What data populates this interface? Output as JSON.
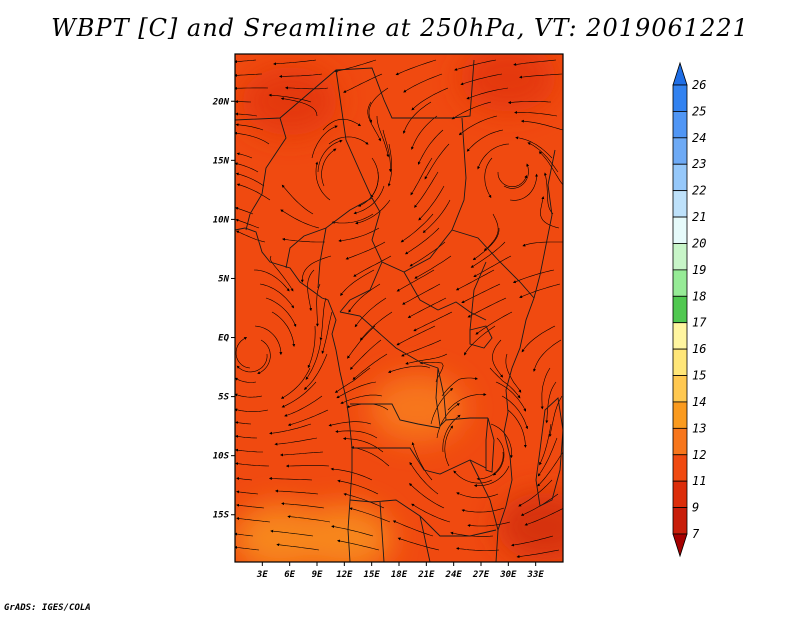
{
  "title": "WBPT [C] and Sreamline at 250hPa, VT: 2019061221",
  "credit": "GrADS: IGES/COLA",
  "map": {
    "lon_range": [
      0,
      36
    ],
    "lat_range": [
      -19,
      24
    ],
    "lon_ticks": [
      {
        "value": 3,
        "label": "3E"
      },
      {
        "value": 6,
        "label": "6E"
      },
      {
        "value": 9,
        "label": "9E"
      },
      {
        "value": 12,
        "label": "12E"
      },
      {
        "value": 15,
        "label": "15E"
      },
      {
        "value": 18,
        "label": "18E"
      },
      {
        "value": 21,
        "label": "21E"
      },
      {
        "value": 24,
        "label": "24E"
      },
      {
        "value": 27,
        "label": "27E"
      },
      {
        "value": 30,
        "label": "30E"
      },
      {
        "value": 33,
        "label": "33E"
      }
    ],
    "lat_ticks": [
      {
        "value": 20,
        "label": "20N"
      },
      {
        "value": 15,
        "label": "15N"
      },
      {
        "value": 10,
        "label": "10N"
      },
      {
        "value": 5,
        "label": "5N"
      },
      {
        "value": 0,
        "label": "EQ"
      },
      {
        "value": -5,
        "label": "5S"
      },
      {
        "value": -10,
        "label": "10S"
      },
      {
        "value": -15,
        "label": "15S"
      }
    ],
    "background_color": "#f04a10",
    "patches": [
      {
        "lon": 30,
        "lat": 22,
        "color": "#e4390c"
      },
      {
        "lon": 6,
        "lat": 20,
        "color": "#e4390c"
      },
      {
        "lon": 20,
        "lat": -6,
        "color": "#f7761c"
      },
      {
        "lon": 5,
        "lat": -17,
        "color": "#f7861e"
      },
      {
        "lon": 12,
        "lat": -17,
        "color": "#f7861e"
      },
      {
        "lon": 34,
        "lat": -16,
        "color": "#d6300a"
      }
    ]
  },
  "colorbar": {
    "levels": [
      "7",
      "9",
      "11",
      "12",
      "13",
      "14",
      "15",
      "16",
      "17",
      "18",
      "19",
      "20",
      "21",
      "22",
      "23",
      "24",
      "25",
      "26"
    ],
    "colors": [
      "#1e6ee6",
      "#3282f0",
      "#5096f5",
      "#6eaaf5",
      "#96c8fa",
      "#bee1fa",
      "#e6fafa",
      "#c8f5c8",
      "#96eb96",
      "#50c850",
      "#fff5a0",
      "#ffe678",
      "#ffc850",
      "#fa9a1e",
      "#f7761c",
      "#f04a10",
      "#dc2d0a",
      "#c81e0a",
      "#a50000"
    ]
  }
}
